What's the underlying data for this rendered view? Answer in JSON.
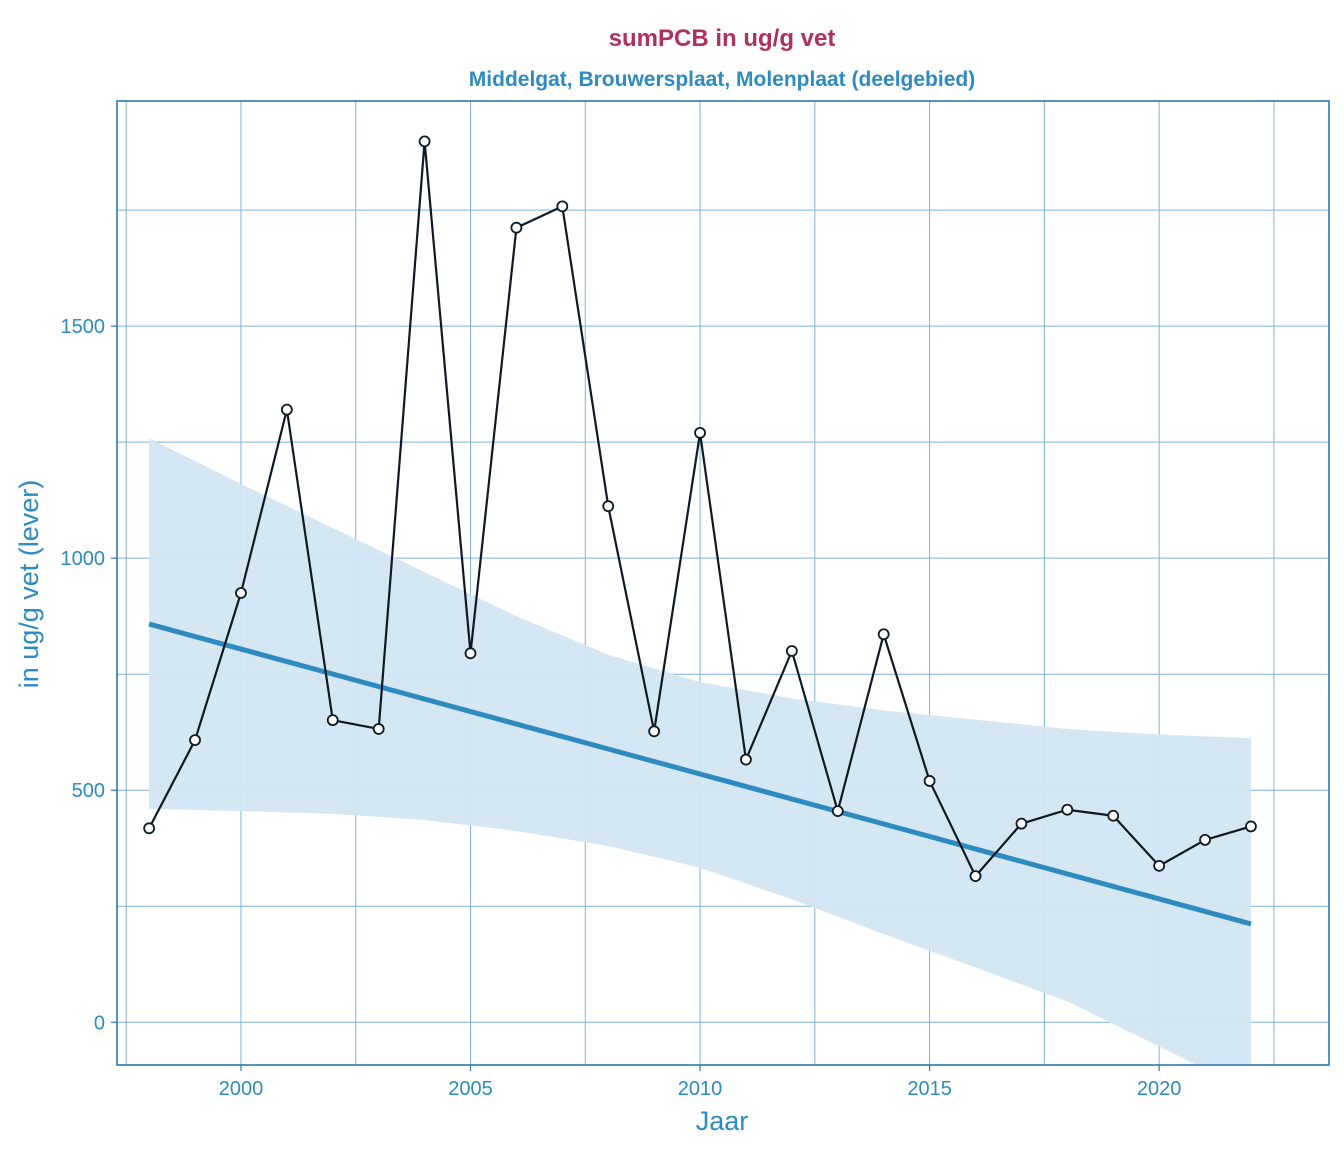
{
  "chart_data": {
    "type": "line",
    "title": "sumPCB in ug/g vet",
    "subtitle": "Middelgat, Brouwersplaat, Molenplaat (deelgebied)",
    "xlabel": "Jaar",
    "ylabel": "in ug/g vet (lever)",
    "xlim": [
      1997.3,
      2023.7
    ],
    "ylim": [
      -92,
      1985
    ],
    "x_ticks": [
      2000,
      2005,
      2010,
      2015,
      2020
    ],
    "y_ticks": [
      0,
      500,
      1000,
      1500
    ],
    "grid": true,
    "colors": {
      "title": "#b03060",
      "accent": "#2e8bc0",
      "frame": "#2b7bb0",
      "grid": "#7fb3d5",
      "band": "#d4e6f3",
      "trend": "#2e8bc0",
      "series_line": "#0d1a26",
      "marker_fill": "#ffffff"
    },
    "series": [
      {
        "x": [
          1998,
          1999,
          2000,
          2001,
          2002,
          2003,
          2004,
          2005,
          2006,
          2007,
          2008,
          2009,
          2010,
          2011,
          2012,
          2013,
          2014,
          2015,
          2016,
          2017,
          2018,
          2019,
          2020,
          2021,
          2022
        ],
        "values": [
          418,
          608,
          925,
          1320,
          651,
          632,
          1898,
          795,
          1712,
          1758,
          1112,
          627,
          1270,
          566,
          800,
          455,
          836,
          520,
          315,
          428,
          458,
          445,
          337,
          393,
          422
        ]
      }
    ],
    "trend": {
      "x": [
        1998,
        2022
      ],
      "values": [
        858,
        212
      ]
    },
    "confidence_band": {
      "x": [
        1998,
        2000,
        2002,
        2004,
        2006,
        2008,
        2010,
        2012,
        2014,
        2016,
        2018,
        2020,
        2022
      ],
      "upper": [
        1258,
        1160,
        1065,
        970,
        875,
        792,
        733,
        698,
        672,
        652,
        632,
        620,
        612
      ],
      "lower": [
        460,
        455,
        449,
        436,
        412,
        380,
        333,
        265,
        190,
        118,
        45,
        -52,
        -150
      ]
    }
  }
}
